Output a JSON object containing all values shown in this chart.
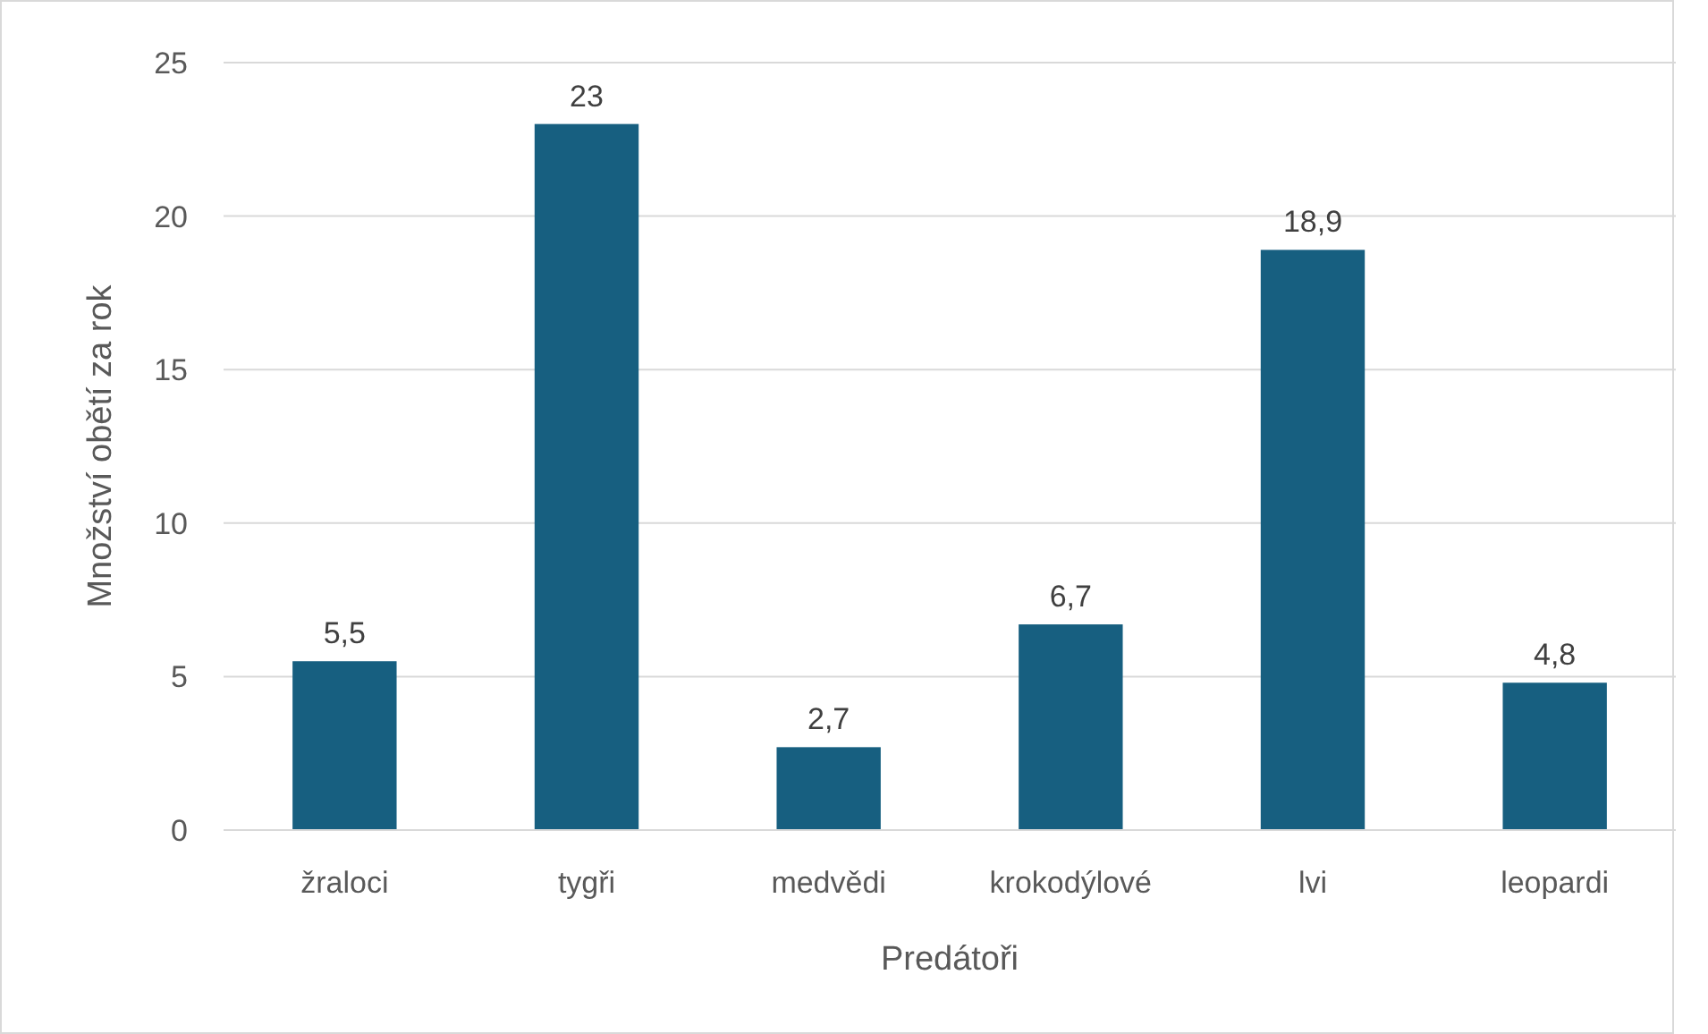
{
  "chart_data": {
    "type": "bar",
    "xlabel": "Predátoři",
    "ylabel": "Množství obětí za rok",
    "categories": [
      "žraloci",
      "tygři",
      "medvědi",
      "krokodýlové",
      "lvi",
      "leopardi"
    ],
    "values": [
      5.5,
      23,
      2.7,
      6.7,
      18.9,
      4.8
    ],
    "value_labels": [
      "5,5",
      "23",
      "2,7",
      "6,7",
      "18,9",
      "4,8"
    ],
    "color": "#175f80",
    "ylim": [
      0,
      25
    ],
    "yticks": [
      0,
      5,
      10,
      15,
      20,
      25
    ],
    "grid": "y"
  }
}
